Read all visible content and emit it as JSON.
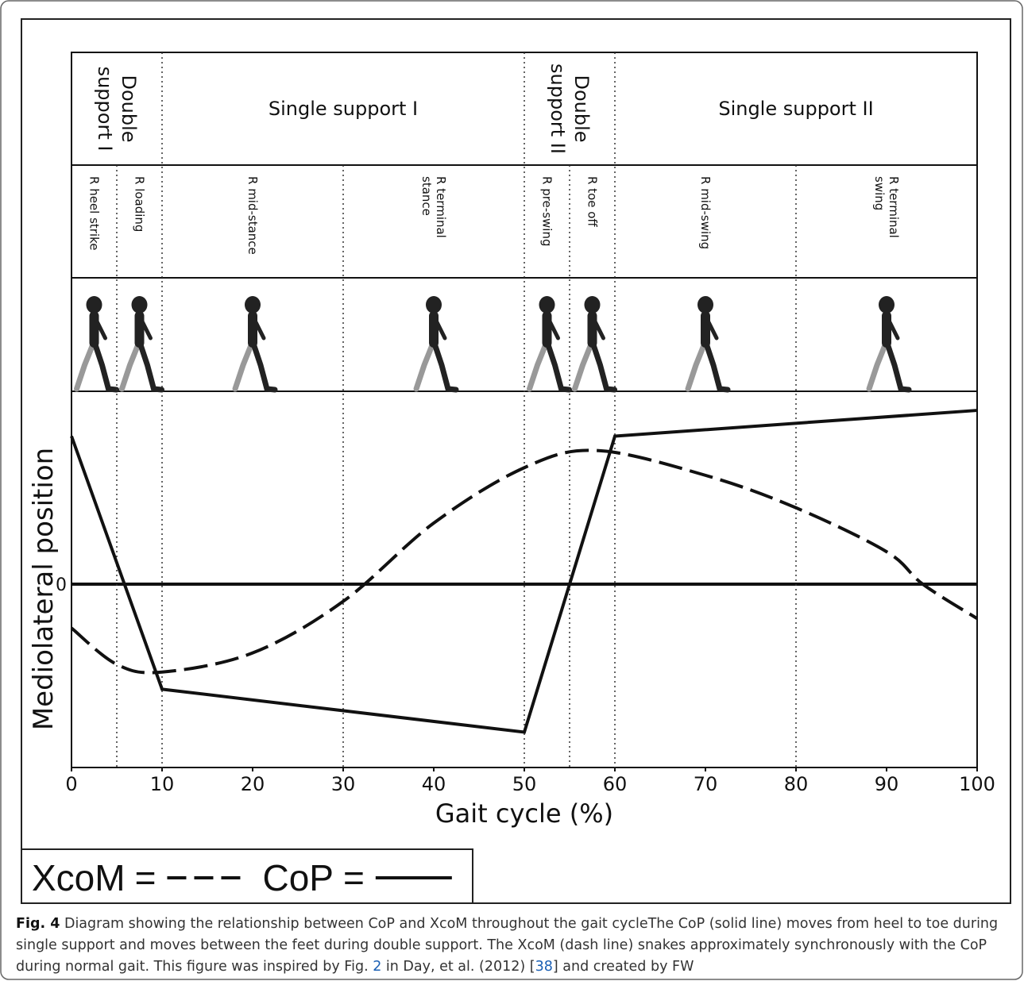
{
  "chart_data": {
    "type": "line",
    "x_label": "Gait cycle (%)",
    "y_label": "Mediolateral position",
    "xlim": [
      0,
      100
    ],
    "xticks": [
      0,
      10,
      20,
      30,
      40,
      50,
      60,
      70,
      80,
      90,
      100
    ],
    "ylim": [
      -9.6,
      10.1
    ],
    "yticks": [
      0
    ],
    "zero_line": true,
    "legend_separator": "=",
    "series": [
      {
        "name": "XcoM",
        "color": "#111111",
        "dashed": true,
        "smooth": true,
        "x": [
          0,
          5,
          10,
          20,
          30,
          40,
          50,
          58,
          70,
          80,
          90,
          94,
          100
        ],
        "y": [
          -2.3,
          -4.2,
          -4.6,
          -3.6,
          -0.9,
          3.2,
          6.1,
          7.0,
          5.7,
          4.0,
          1.7,
          0,
          -1.8
        ]
      },
      {
        "name": "CoP",
        "color": "#111111",
        "dashed": false,
        "smooth": false,
        "x": [
          0,
          10,
          50,
          60,
          100
        ],
        "y": [
          7.75,
          -5.5,
          -7.75,
          7.75,
          9.1
        ]
      }
    ],
    "phases": [
      {
        "label": [
          "Double",
          "support I"
        ],
        "start": 0,
        "end": 10,
        "rotated": true
      },
      {
        "label": [
          "Single support I"
        ],
        "start": 10,
        "end": 50,
        "rotated": false
      },
      {
        "label": [
          "Double",
          "support II"
        ],
        "start": 50,
        "end": 60,
        "rotated": true
      },
      {
        "label": [
          "Single support II"
        ],
        "start": 60,
        "end": 100,
        "rotated": false
      }
    ],
    "subphases": [
      {
        "label": [
          "R heel strike"
        ],
        "start": 0,
        "end": 5
      },
      {
        "label": [
          "R loading"
        ],
        "start": 5,
        "end": 10
      },
      {
        "label": [
          "R mid-stance"
        ],
        "start": 10,
        "end": 30
      },
      {
        "label": [
          "R terminal",
          "stance"
        ],
        "start": 30,
        "end": 50
      },
      {
        "label": [
          "R pre-swing"
        ],
        "start": 50,
        "end": 55
      },
      {
        "label": [
          "R toe off"
        ],
        "start": 55,
        "end": 60
      },
      {
        "label": [
          "R mid-swing"
        ],
        "start": 60,
        "end": 80
      },
      {
        "label": [
          "R terminal",
          "swing"
        ],
        "start": 80,
        "end": 100
      }
    ]
  },
  "caption": {
    "label": "Fig. 4",
    "segments": [
      " Diagram showing the relationship between CoP and XcoM throughout the gait cycleThe CoP (solid line) moves from heel to toe during single support and moves between the feet during double support. The XcoM (dash line) snakes approximately synchronously with the CoP during normal gait. This figure was inspired by Fig. ",
      "2",
      " in Day, et al. (2012) [",
      "38",
      "] and created by FW"
    ],
    "links": [
      1,
      3
    ]
  }
}
